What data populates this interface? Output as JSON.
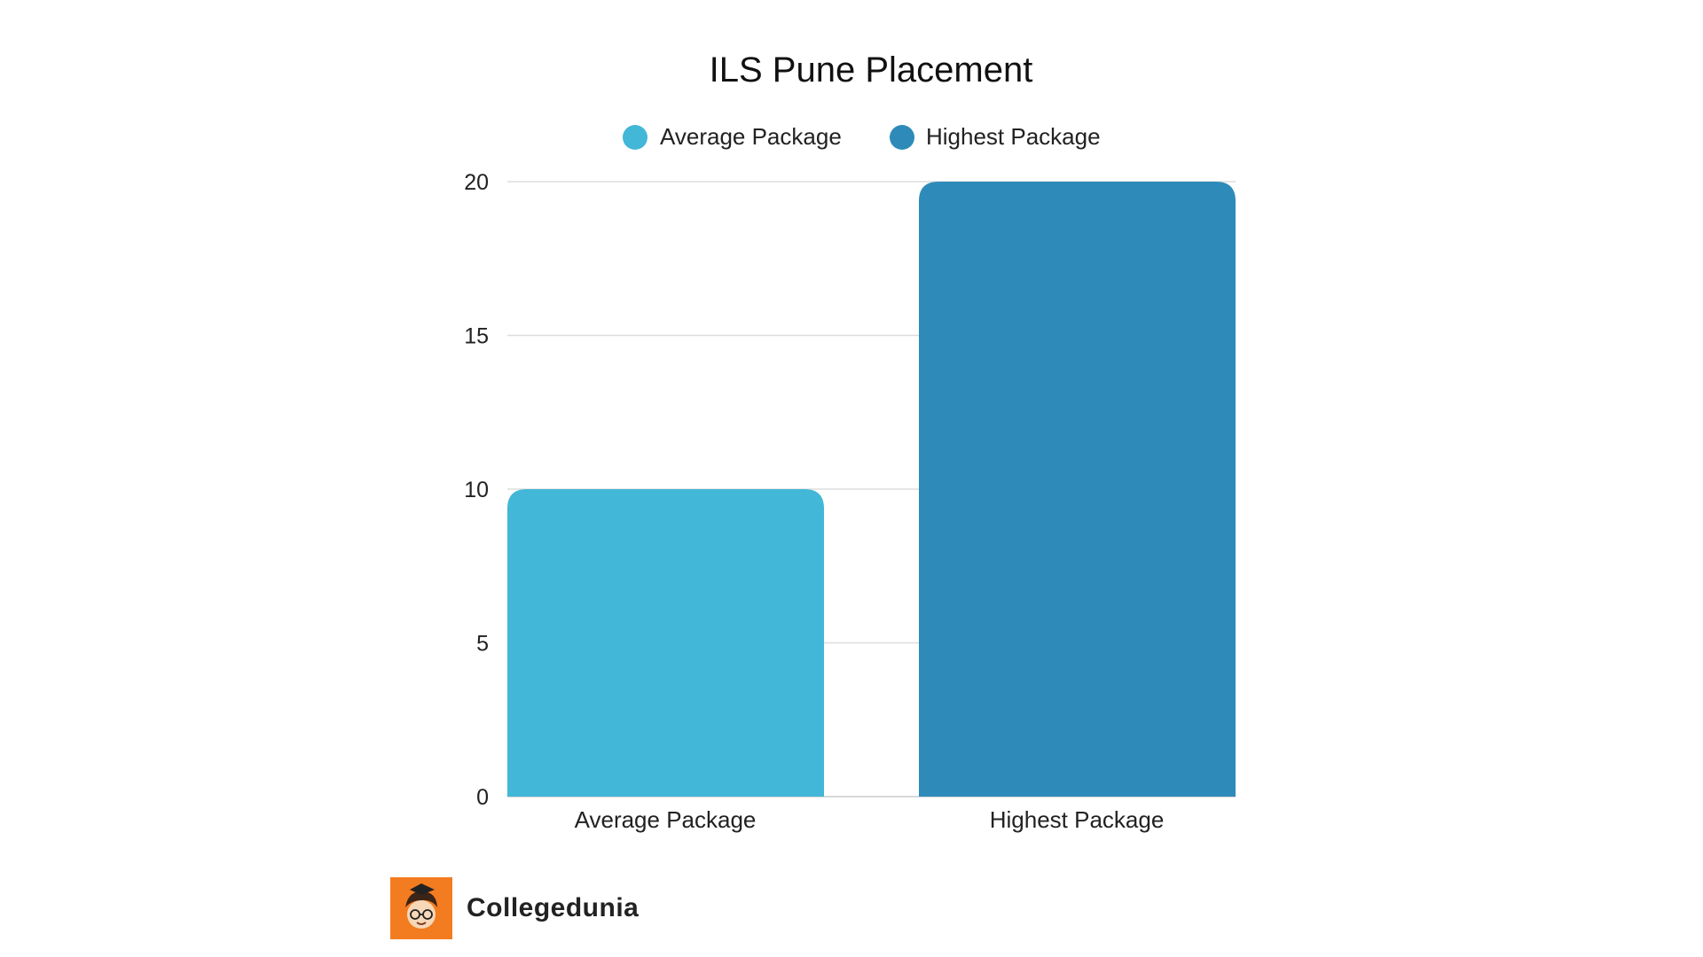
{
  "chart_data": {
    "type": "bar",
    "title": "ILS Pune Placement",
    "categories": [
      "Average Package",
      "Highest Package"
    ],
    "series": [
      {
        "name": "Average Package",
        "color": "#43b7d7",
        "values": [
          10,
          null
        ]
      },
      {
        "name": "Highest Package",
        "color": "#2e8bb9",
        "values": [
          null,
          20
        ]
      }
    ],
    "ylim": [
      0,
      20
    ],
    "yticks": [
      0,
      5,
      10,
      15,
      20
    ],
    "grid": true,
    "legend": "top-center"
  },
  "branding": {
    "name": "Collegedunia",
    "logo_icon": "student-mascot-icon",
    "logo_color": "#f47c20"
  }
}
